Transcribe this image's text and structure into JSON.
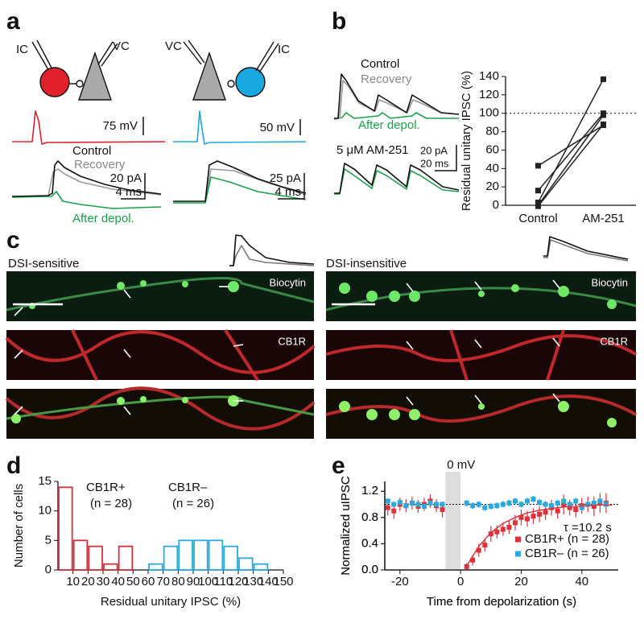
{
  "panel_a": {
    "label": "a",
    "electrodes": [
      "IC",
      "VC",
      "VC",
      "IC"
    ],
    "scales": [
      "75 mV",
      "50 mV",
      "20 pA",
      "4 ms",
      "25 pA",
      "4 ms"
    ],
    "traces": [
      "Control",
      "Recovery",
      "After depol."
    ]
  },
  "panel_b": {
    "label": "b",
    "traces": [
      "Control",
      "Recovery",
      "After depol."
    ],
    "drug": "5 μM AM-251",
    "scales": [
      "20 pA",
      "20 ms"
    ]
  },
  "panel_c": {
    "label": "c",
    "titles": [
      "DSI-sensitive",
      "DSI-insensitive"
    ],
    "stains": [
      "Biocytin",
      "CB1R",
      "Biocytin",
      "CB1R"
    ]
  },
  "panel_d": {
    "label": "d"
  },
  "panel_e": {
    "label": "e"
  },
  "chart_data": [
    {
      "type": "paired",
      "ylabel": "Residual unitary IPSC (%)",
      "categories": [
        "Control",
        "AM-251"
      ],
      "color": "#222222",
      "series": [
        {
          "values": [
            43,
            87
          ]
        },
        {
          "values": [
            16,
            100
          ]
        },
        {
          "values": [
            3,
            137
          ]
        },
        {
          "values": [
            0,
            98
          ]
        },
        {
          "values": [
            -1,
            88
          ]
        }
      ],
      "ylim": [
        0,
        140
      ],
      "yticks": [
        0,
        20,
        40,
        60,
        80,
        100,
        120,
        140
      ],
      "reference_line": 100
    },
    {
      "type": "histogram",
      "xlabel": "Residual unitary IPSC (%)",
      "ylabel": "Number of cells",
      "series": [
        {
          "name": "CB1R+",
          "color": "#d0303a",
          "annotation": "(n = 28)",
          "bins": [
            0,
            10,
            20,
            30,
            40,
            50
          ],
          "values": [
            14,
            5,
            4,
            1,
            4
          ]
        },
        {
          "name": "CB1R–",
          "color": "#29a9df",
          "annotation": "(n = 26)",
          "bins": [
            60,
            70,
            80,
            90,
            100,
            110,
            120,
            130,
            140
          ],
          "values": [
            1,
            4,
            5,
            5,
            5,
            4,
            2,
            1
          ]
        }
      ],
      "xlim": [
        0,
        150
      ],
      "xticks": [
        10,
        20,
        30,
        40,
        50,
        60,
        70,
        80,
        90,
        100,
        110,
        120,
        130,
        140,
        150
      ],
      "ylim": [
        0,
        15
      ],
      "yticks": [
        0,
        5,
        10,
        15
      ]
    },
    {
      "type": "scatter",
      "xlabel": "Time from depolarization (s)",
      "ylabel": "Normalized uIPSC",
      "x": [
        -24,
        -22,
        -20,
        -18,
        -16,
        -14,
        -12,
        -10,
        -8,
        -6,
        2,
        4,
        6,
        8,
        10,
        12,
        14,
        16,
        18,
        20,
        22,
        24,
        26,
        28,
        30,
        32,
        34,
        36,
        38,
        40,
        42,
        44,
        46,
        48
      ],
      "series": [
        {
          "name": "CB1R+ (n = 28)",
          "color": "#e0303a",
          "values": [
            0.95,
            0.9,
            1.0,
            0.98,
            1.02,
            0.97,
            1.0,
            1.05,
            0.98,
            0.92,
            0.05,
            0.15,
            0.3,
            0.38,
            0.55,
            0.58,
            0.62,
            0.65,
            0.72,
            0.8,
            0.78,
            0.82,
            0.85,
            0.88,
            0.95,
            0.9,
            1.0,
            0.95,
            0.92,
            0.98,
            1.0,
            0.97,
            1.02,
            1.02
          ],
          "errors": [
            0.12,
            0.12,
            0.1,
            0.1,
            0.1,
            0.1,
            0.1,
            0.1,
            0.1,
            0.12,
            0.05,
            0.08,
            0.1,
            0.1,
            0.12,
            0.1,
            0.1,
            0.1,
            0.12,
            0.12,
            0.12,
            0.12,
            0.12,
            0.12,
            0.12,
            0.12,
            0.15,
            0.12,
            0.12,
            0.12,
            0.12,
            0.15,
            0.15,
            0.15
          ]
        },
        {
          "name": "CB1R– (n = 26)",
          "color": "#29a9df",
          "values": [
            1.05,
            1.0,
            1.03,
            0.98,
            1.02,
            1.0,
            0.97,
            1.02,
            1.0,
            1.0,
            1.02,
            0.98,
            1.0,
            0.95,
            0.97,
            0.98,
            1.0,
            1.02,
            1.05,
            1.0,
            1.05,
            1.08,
            1.03,
            1.0,
            0.98,
            1.02,
            1.05,
            1.0,
            1.05,
            0.95,
            1.0,
            1.02,
            1.05,
            1.0
          ],
          "errors": [
            0.04,
            0.04,
            0.04,
            0.04,
            0.04,
            0.04,
            0.04,
            0.04,
            0.04,
            0.04,
            0.05,
            0.05,
            0.05,
            0.05,
            0.05,
            0.05,
            0.05,
            0.05,
            0.05,
            0.05,
            0.05,
            0.05,
            0.05,
            0.05,
            0.05,
            0.05,
            0.05,
            0.05,
            0.05,
            0.05,
            0.05,
            0.05,
            0.05,
            0.05
          ]
        }
      ],
      "fit": {
        "color": "#e0303a",
        "x": [
          2,
          6,
          10,
          14,
          18,
          22,
          26,
          30,
          34,
          38,
          42,
          46,
          50
        ],
        "values": [
          0.06,
          0.36,
          0.57,
          0.71,
          0.8,
          0.87,
          0.91,
          0.94,
          0.96,
          0.97,
          0.98,
          0.99,
          0.99
        ]
      },
      "annotation": "τ =10.2 s",
      "shaded_region": {
        "label": "0 mV",
        "x": [
          -5,
          0
        ]
      },
      "reference_line": 1,
      "xlim": [
        -25,
        52
      ],
      "xticks": [
        -20,
        0,
        20,
        40
      ],
      "ylim": [
        0,
        1.35
      ],
      "yticks": [
        {
          "value": 0,
          "label": "0.0"
        },
        0.4,
        0.8,
        1.2
      ],
      "legend": "lower-right"
    }
  ]
}
